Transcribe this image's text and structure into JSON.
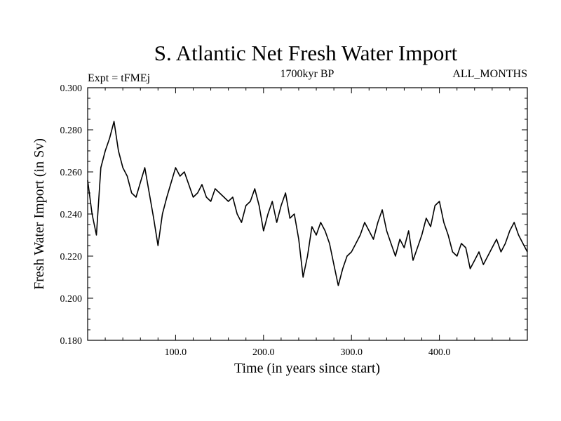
{
  "chart_data": {
    "type": "line",
    "title": "S. Atlantic Net Fresh Water Import",
    "subtitle_left": "Expt = tFMEj",
    "subtitle_center": "1700kyr BP",
    "subtitle_right": "ALL_MONTHS",
    "xlabel": "Time (in years since start)",
    "ylabel": "Fresh Water Import (in Sv)",
    "xlim": [
      0,
      500
    ],
    "ylim": [
      0.18,
      0.3
    ],
    "x_ticks": [
      100,
      200,
      300,
      400
    ],
    "x_tick_labels": [
      "100.0",
      "200.0",
      "300.0",
      "400.0"
    ],
    "y_ticks": [
      0.18,
      0.2,
      0.22,
      0.24,
      0.26,
      0.28,
      0.3
    ],
    "y_tick_labels": [
      "0.180",
      "0.200",
      "0.220",
      "0.240",
      "0.260",
      "0.280",
      "0.300"
    ],
    "grid": false,
    "series": [
      {
        "name": "Fresh Water Import",
        "x": [
          0,
          5,
          10,
          15,
          20,
          25,
          30,
          35,
          40,
          45,
          50,
          55,
          60,
          65,
          70,
          75,
          80,
          85,
          90,
          95,
          100,
          105,
          110,
          115,
          120,
          125,
          130,
          135,
          140,
          145,
          150,
          155,
          160,
          165,
          170,
          175,
          180,
          185,
          190,
          195,
          200,
          205,
          210,
          215,
          220,
          225,
          230,
          235,
          240,
          245,
          250,
          255,
          260,
          265,
          270,
          275,
          280,
          285,
          290,
          295,
          300,
          305,
          310,
          315,
          320,
          325,
          330,
          335,
          340,
          345,
          350,
          355,
          360,
          365,
          370,
          375,
          380,
          385,
          390,
          395,
          400,
          405,
          410,
          415,
          420,
          425,
          430,
          435,
          440,
          445,
          450,
          455,
          460,
          465,
          470,
          475,
          480,
          485,
          490,
          495,
          500
        ],
        "values": [
          0.256,
          0.24,
          0.23,
          0.262,
          0.27,
          0.276,
          0.284,
          0.27,
          0.262,
          0.258,
          0.25,
          0.248,
          0.255,
          0.262,
          0.25,
          0.238,
          0.225,
          0.24,
          0.248,
          0.255,
          0.262,
          0.258,
          0.26,
          0.254,
          0.248,
          0.25,
          0.254,
          0.248,
          0.246,
          0.252,
          0.25,
          0.248,
          0.246,
          0.248,
          0.24,
          0.236,
          0.244,
          0.246,
          0.252,
          0.244,
          0.232,
          0.24,
          0.246,
          0.236,
          0.244,
          0.25,
          0.238,
          0.24,
          0.228,
          0.21,
          0.22,
          0.234,
          0.23,
          0.236,
          0.232,
          0.226,
          0.216,
          0.206,
          0.214,
          0.22,
          0.222,
          0.226,
          0.23,
          0.236,
          0.232,
          0.228,
          0.236,
          0.242,
          0.232,
          0.226,
          0.22,
          0.228,
          0.224,
          0.232,
          0.218,
          0.224,
          0.23,
          0.238,
          0.234,
          0.244,
          0.246,
          0.236,
          0.23,
          0.222,
          0.22,
          0.226,
          0.224,
          0.214,
          0.218,
          0.222,
          0.216,
          0.22,
          0.224,
          0.228,
          0.222,
          0.226,
          0.232,
          0.236,
          0.23,
          0.226,
          0.222
        ]
      }
    ]
  }
}
